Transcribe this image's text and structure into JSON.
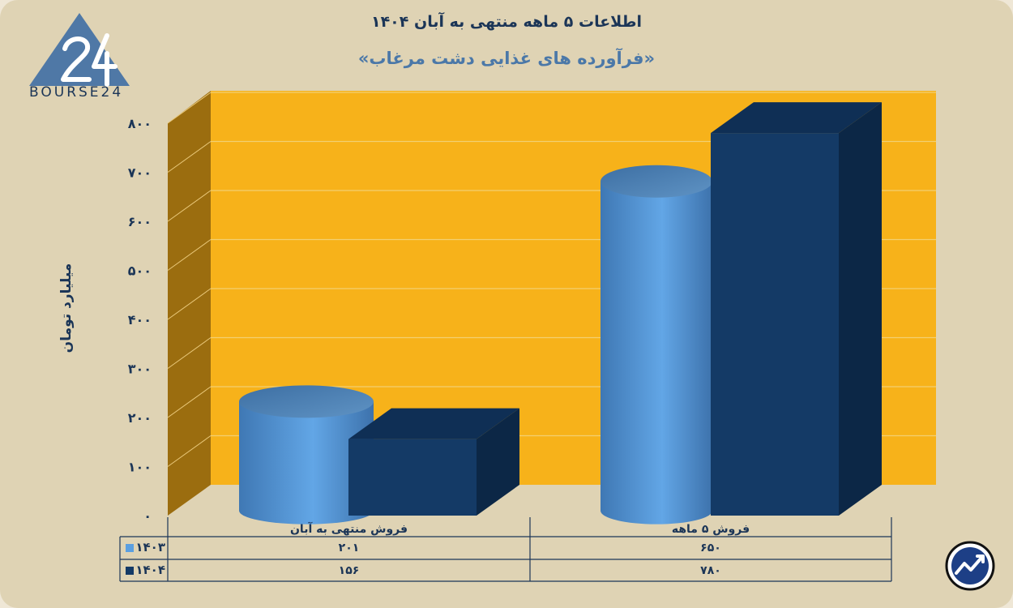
{
  "title": "اطلاعات ۵ ماهه منتهی به آبان ۱۴۰۴",
  "subtitle": "«فرآورده های غذایی دشت مرغاب»",
  "logo": {
    "text": "BOURSE24",
    "mark": "24"
  },
  "colors": {
    "wall": "#f7b21a",
    "side_wall": "#9b6d0f",
    "series_1403": "#5b9fe0",
    "series_1404": "#143a66"
  },
  "icons": {
    "corner_badge": "growth-chart-icon"
  },
  "chart_data": {
    "type": "bar",
    "categories": [
      "فروش منتهی به  آبان",
      "فروش ۵  ماهه"
    ],
    "series": [
      {
        "name": "۱۴۰۳",
        "values": [
          201,
          650
        ],
        "value_labels": [
          "۲۰۱",
          "۶۵۰"
        ],
        "shape": "cylinder"
      },
      {
        "name": "۱۴۰۴",
        "values": [
          156,
          780
        ],
        "value_labels": [
          "۱۵۶",
          "۷۸۰"
        ],
        "shape": "box"
      }
    ],
    "ylabel": "میلیارد تومان",
    "ylim": [
      0,
      800
    ],
    "yticks": [
      0,
      100,
      200,
      300,
      400,
      500,
      600,
      700,
      800
    ],
    "ytick_labels": [
      "۰",
      "۱۰۰",
      "۲۰۰",
      "۳۰۰",
      "۴۰۰",
      "۵۰۰",
      "۶۰۰",
      "۷۰۰",
      "۸۰۰"
    ],
    "grid": true,
    "legend": "data-table-below"
  }
}
